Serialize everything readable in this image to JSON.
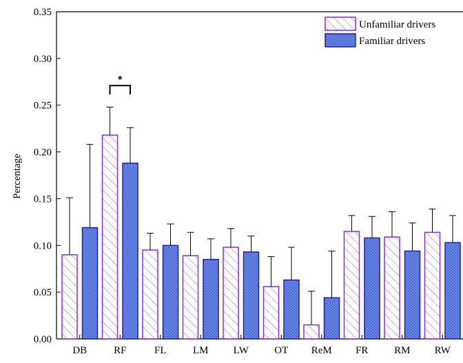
{
  "chart_data": {
    "type": "bar",
    "categories": [
      "DB",
      "RF",
      "FL",
      "LM",
      "LW",
      "OT",
      "ReM",
      "FR",
      "RM",
      "RW"
    ],
    "series": [
      {
        "name": "Unfamiliar drivers",
        "values": [
          0.09,
          0.218,
          0.095,
          0.089,
          0.098,
          0.056,
          0.015,
          0.115,
          0.109,
          0.114
        ],
        "error_upper": [
          0.151,
          0.248,
          0.113,
          0.114,
          0.118,
          0.088,
          0.051,
          0.132,
          0.136,
          0.139
        ],
        "color": "#8B2BE2",
        "pattern": "diagonal-hatch"
      },
      {
        "name": "Familiar drivers",
        "values": [
          0.119,
          0.188,
          0.1,
          0.085,
          0.093,
          0.063,
          0.044,
          0.108,
          0.094,
          0.103
        ],
        "error_upper": [
          0.208,
          0.226,
          0.123,
          0.107,
          0.11,
          0.098,
          0.094,
          0.131,
          0.124,
          0.132
        ],
        "color": "#4A6BD8",
        "edge_color": "#1F1FA8",
        "pattern": "dots"
      }
    ],
    "ylabel": "Percentage",
    "xlabel": "",
    "ylim": [
      0,
      0.35
    ],
    "yticks": [
      "0.00",
      "0.05",
      "0.10",
      "0.15",
      "0.20",
      "0.25",
      "0.30",
      "0.35"
    ],
    "legend_position": "top-right",
    "grid": false,
    "annotations": [
      {
        "text": "*",
        "category": "RF",
        "type": "significance-bracket",
        "level": 0.271
      }
    ]
  }
}
